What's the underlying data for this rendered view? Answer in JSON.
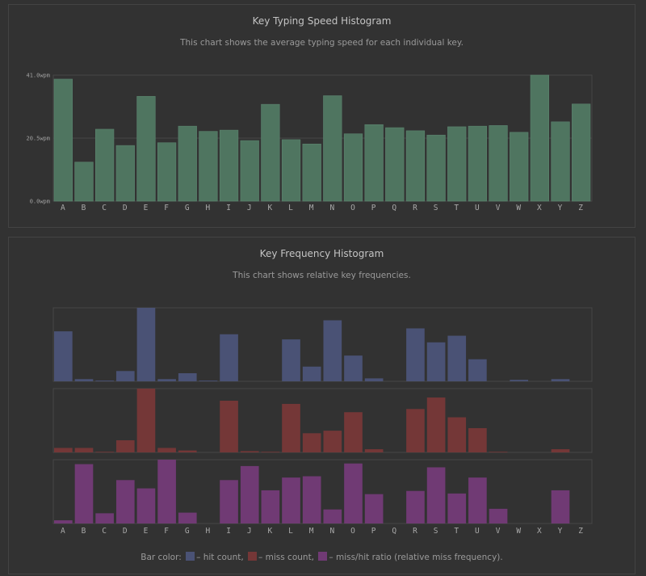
{
  "chart_data": [
    {
      "type": "bar",
      "title": "Key Typing Speed Histogram",
      "subtitle": "This chart shows the average typing speed for each individual key.",
      "categories": [
        "A",
        "B",
        "C",
        "D",
        "E",
        "F",
        "G",
        "H",
        "I",
        "J",
        "K",
        "L",
        "M",
        "N",
        "O",
        "P",
        "Q",
        "R",
        "S",
        "T",
        "U",
        "V",
        "W",
        "X",
        "Y",
        "Z"
      ],
      "values": [
        39.7,
        12.7,
        23.4,
        18.1,
        34.1,
        19.0,
        24.4,
        22.7,
        23.1,
        19.7,
        31.5,
        20.0,
        18.6,
        34.3,
        21.9,
        24.9,
        23.9,
        22.9,
        21.5,
        24.2,
        24.4,
        24.6,
        22.4,
        41.0,
        25.8,
        31.6
      ],
      "yticks": [
        "0.0wpm",
        "20.5wpm",
        "41.0wpm"
      ],
      "ylim": [
        0,
        41.0
      ],
      "grid": true,
      "color": "#4f7560"
    },
    {
      "type": "bar",
      "title": "Key Frequency Histogram",
      "subtitle": "This chart shows relative key frequencies.",
      "categories": [
        "A",
        "B",
        "C",
        "D",
        "E",
        "F",
        "G",
        "H",
        "I",
        "J",
        "K",
        "L",
        "M",
        "N",
        "O",
        "P",
        "Q",
        "R",
        "S",
        "T",
        "U",
        "V",
        "W",
        "X",
        "Y",
        "Z"
      ],
      "series": [
        {
          "name": "hit count",
          "color": "#4a5275",
          "values": [
            0.68,
            0.03,
            0.01,
            0.14,
            1.0,
            0.03,
            0.11,
            0.01,
            0.64,
            0,
            0,
            0.57,
            0.2,
            0.83,
            0.35,
            0.04,
            0,
            0.72,
            0.53,
            0.62,
            0.3,
            0,
            0.02,
            0,
            0.03,
            0
          ]
        },
        {
          "name": "miss count",
          "color": "#743737",
          "values": [
            0.07,
            0.07,
            0.01,
            0.19,
            1.0,
            0.07,
            0.03,
            0,
            0.81,
            0.02,
            0.01,
            0.76,
            0.3,
            0.34,
            0.63,
            0.05,
            0,
            0.68,
            0.86,
            0.55,
            0.38,
            0.01,
            0,
            0,
            0.05,
            0
          ]
        },
        {
          "name": "miss/hit ratio (relative miss frequency)",
          "color": "#703a74",
          "values": [
            0.05,
            0.93,
            0.16,
            0.68,
            0.55,
            1.0,
            0.17,
            0,
            0.68,
            0.9,
            0.52,
            0.72,
            0.74,
            0.22,
            0.94,
            0.46,
            0,
            0.51,
            0.88,
            0.47,
            0.72,
            0.23,
            0,
            0,
            0.52,
            0
          ]
        }
      ],
      "legend": {
        "prefix": "Bar color:",
        "hit": "– hit count,",
        "miss": "– miss count,",
        "ratio": "– miss/hit ratio (relative miss frequency)."
      }
    }
  ]
}
